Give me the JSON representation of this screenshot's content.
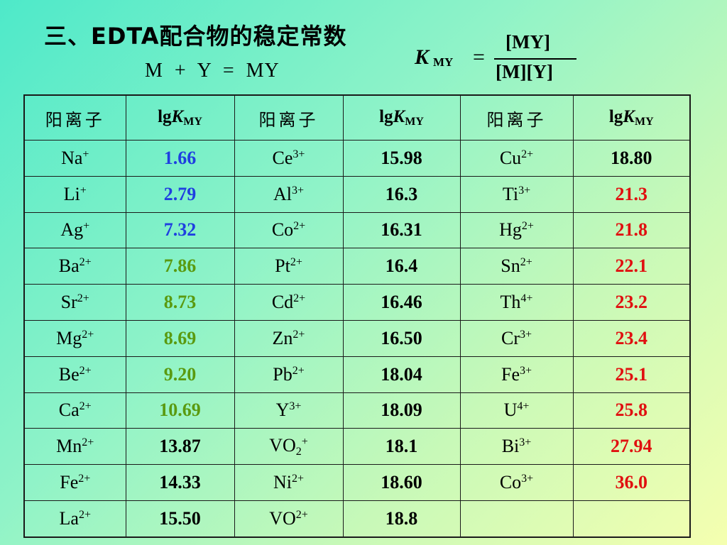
{
  "heading": {
    "title": "三、EDTA配合物的稳定常数",
    "reaction": "M  +  Y  =  MY",
    "formula": {
      "k": "K",
      "k_sub": "MY",
      "eq": "=",
      "numerator": "[MY]",
      "denominator": "[M][Y]"
    }
  },
  "table": {
    "headers": [
      {
        "label": "阳离子"
      },
      {
        "prefix": "lg",
        "symbol": "K",
        "sub": "MY"
      },
      {
        "label": "阳离子"
      },
      {
        "prefix": "lg",
        "symbol": "K",
        "sub": "MY"
      },
      {
        "label": "阳离子"
      },
      {
        "prefix": "lg",
        "symbol": "K",
        "sub": "MY"
      }
    ],
    "colors": {
      "blue": "#1f3fe0",
      "green": "#5a9a10",
      "black": "#000000",
      "red": "#e01010"
    },
    "rows": [
      [
        {
          "ion": "Na",
          "charge": "+"
        },
        {
          "value": "1.66",
          "color": "blue"
        },
        {
          "ion": "Ce",
          "charge": "3+"
        },
        {
          "value": "15.98",
          "color": "black"
        },
        {
          "ion": "Cu",
          "charge": "2+"
        },
        {
          "value": "18.80",
          "color": "black"
        }
      ],
      [
        {
          "ion": "Li",
          "charge": "+"
        },
        {
          "value": "2.79",
          "color": "blue"
        },
        {
          "ion": "Al",
          "charge": "3+"
        },
        {
          "value": "16.3",
          "color": "black"
        },
        {
          "ion": "Ti",
          "charge": "3+"
        },
        {
          "value": "21.3",
          "color": "red"
        }
      ],
      [
        {
          "ion": "Ag",
          "charge": "+"
        },
        {
          "value": "7.32",
          "color": "blue"
        },
        {
          "ion": "Co",
          "charge": "2+"
        },
        {
          "value": "16.31",
          "color": "black"
        },
        {
          "ion": "Hg",
          "charge": "2+"
        },
        {
          "value": "21.8",
          "color": "red"
        }
      ],
      [
        {
          "ion": "Ba",
          "charge": "2+"
        },
        {
          "value": "7.86",
          "color": "green"
        },
        {
          "ion": "Pt",
          "charge": "2+"
        },
        {
          "value": "16.4",
          "color": "black"
        },
        {
          "ion": "Sn",
          "charge": "2+"
        },
        {
          "value": "22.1",
          "color": "red"
        }
      ],
      [
        {
          "ion": "Sr",
          "charge": "2+"
        },
        {
          "value": "8.73",
          "color": "green"
        },
        {
          "ion": "Cd",
          "charge": "2+"
        },
        {
          "value": "16.46",
          "color": "black"
        },
        {
          "ion": "Th",
          "charge": "4+"
        },
        {
          "value": "23.2",
          "color": "red"
        }
      ],
      [
        {
          "ion": "Mg",
          "charge": "2+"
        },
        {
          "value": "8.69",
          "color": "green"
        },
        {
          "ion": "Zn",
          "charge": "2+"
        },
        {
          "value": "16.50",
          "color": "black"
        },
        {
          "ion": "Cr",
          "charge": "3+"
        },
        {
          "value": "23.4",
          "color": "red"
        }
      ],
      [
        {
          "ion": "Be",
          "charge": "2+"
        },
        {
          "value": "9.20",
          "color": "green"
        },
        {
          "ion": "Pb",
          "charge": "2+"
        },
        {
          "value": "18.04",
          "color": "black"
        },
        {
          "ion": "Fe",
          "charge": "3+"
        },
        {
          "value": "25.1",
          "color": "red"
        }
      ],
      [
        {
          "ion": "Ca",
          "charge": "2+"
        },
        {
          "value": "10.69",
          "color": "green"
        },
        {
          "ion": "Y",
          "charge": "3+"
        },
        {
          "value": "18.09",
          "color": "black"
        },
        {
          "ion": "U",
          "charge": "4+"
        },
        {
          "value": "25.8",
          "color": "red"
        }
      ],
      [
        {
          "ion": "Mn",
          "charge": "2+"
        },
        {
          "value": "13.87",
          "color": "black"
        },
        {
          "ion": "VO",
          "sub": "2",
          "charge": "+"
        },
        {
          "value": "18.1",
          "color": "black"
        },
        {
          "ion": "Bi",
          "charge": "3+"
        },
        {
          "value": "27.94",
          "color": "red"
        }
      ],
      [
        {
          "ion": "Fe",
          "charge": "2+"
        },
        {
          "value": "14.33",
          "color": "black"
        },
        {
          "ion": "Ni",
          "charge": "2+"
        },
        {
          "value": "18.60",
          "color": "black"
        },
        {
          "ion": "Co",
          "charge": "3+"
        },
        {
          "value": "36.0",
          "color": "red"
        }
      ],
      [
        {
          "ion": "La",
          "charge": "2+"
        },
        {
          "value": "15.50",
          "color": "black"
        },
        {
          "ion": "VO",
          "charge": "2+"
        },
        {
          "value": "18.8",
          "color": "black"
        },
        {},
        {}
      ]
    ]
  }
}
